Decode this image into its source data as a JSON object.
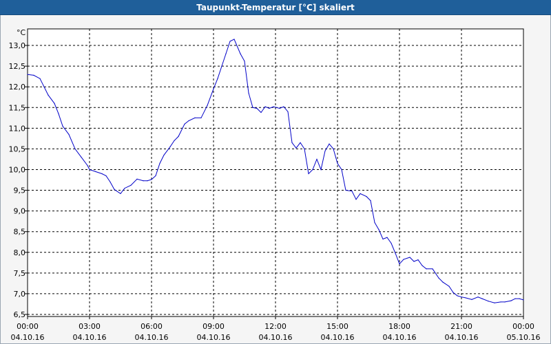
{
  "window": {
    "title": "Taupunkt-Temperatur [°C] skaliert"
  },
  "chart_data": {
    "type": "line",
    "title": "Taupunkt-Temperatur [°C] skaliert",
    "ylabel": "°C",
    "xlabel": "",
    "ylim": [
      6.45,
      13.4
    ],
    "xlim": [
      0,
      24
    ],
    "grid": true,
    "line_color": "#0000c8",
    "y_ticks": [
      {
        "value": 6.5,
        "label": "6,5"
      },
      {
        "value": 7.0,
        "label": "7,0"
      },
      {
        "value": 7.5,
        "label": "7,5"
      },
      {
        "value": 8.0,
        "label": "8,0"
      },
      {
        "value": 8.5,
        "label": "8,5"
      },
      {
        "value": 9.0,
        "label": "9,0"
      },
      {
        "value": 9.5,
        "label": "9,5"
      },
      {
        "value": 10.0,
        "label": "10,0"
      },
      {
        "value": 10.5,
        "label": "10,5"
      },
      {
        "value": 11.0,
        "label": "11,0"
      },
      {
        "value": 11.5,
        "label": "11,5"
      },
      {
        "value": 12.0,
        "label": "12,0"
      },
      {
        "value": 12.5,
        "label": "12,5"
      },
      {
        "value": 13.0,
        "label": "13,0"
      }
    ],
    "x_ticks": [
      {
        "value": 0,
        "time": "00:00",
        "date": "04.10.16"
      },
      {
        "value": 3,
        "time": "03:00",
        "date": "04.10.16"
      },
      {
        "value": 6,
        "time": "06:00",
        "date": "04.10.16"
      },
      {
        "value": 9,
        "time": "09:00",
        "date": "04.10.16"
      },
      {
        "value": 12,
        "time": "12:00",
        "date": "04.10.16"
      },
      {
        "value": 15,
        "time": "15:00",
        "date": "04.10.16"
      },
      {
        "value": 18,
        "time": "18:00",
        "date": "04.10.16"
      },
      {
        "value": 21,
        "time": "21:00",
        "date": "04.10.16"
      },
      {
        "value": 24,
        "time": "00:00",
        "date": "05.10.16"
      }
    ],
    "series": [
      {
        "x": [
          0,
          0.3,
          0.6,
          0.8,
          1.0,
          1.3,
          1.5,
          1.7,
          2.0,
          2.3,
          2.6,
          2.9,
          3.0,
          3.3,
          3.6,
          3.8,
          4.0,
          4.2,
          4.5,
          4.7,
          5.0,
          5.3,
          5.6,
          5.8,
          6.0,
          6.2,
          6.4,
          6.6,
          6.9,
          7.1,
          7.3,
          7.6,
          7.8,
          8.1,
          8.4,
          8.7,
          9.0,
          9.2,
          9.4,
          9.6,
          9.8,
          10.0,
          10.3,
          10.5,
          10.7,
          10.9,
          11.1,
          11.3,
          11.5,
          11.7,
          11.9,
          12.2,
          12.4,
          12.6,
          12.8,
          13.0,
          13.2,
          13.4,
          13.6,
          13.8,
          14.0,
          14.2,
          14.4,
          14.6,
          14.8,
          15.0,
          15.2,
          15.4,
          15.7,
          15.9,
          16.1,
          16.4,
          16.6,
          16.8,
          17.0,
          17.2,
          17.4,
          17.6,
          17.8,
          18.0,
          18.2,
          18.5,
          18.7,
          18.9,
          19.1,
          19.3,
          19.6,
          19.9,
          20.1,
          20.4,
          20.6,
          20.8,
          21.0,
          21.2,
          21.5,
          21.8,
          22.0,
          22.3,
          22.6,
          22.9,
          23.1,
          23.4,
          23.6,
          23.8,
          24.0
        ],
        "values": [
          12.3,
          12.28,
          12.2,
          12.0,
          11.8,
          11.6,
          11.35,
          11.05,
          10.85,
          10.5,
          10.3,
          10.1,
          10.0,
          9.95,
          9.9,
          9.85,
          9.7,
          9.52,
          9.42,
          9.55,
          9.62,
          9.77,
          9.73,
          9.73,
          9.76,
          9.85,
          10.15,
          10.35,
          10.55,
          10.7,
          10.8,
          11.1,
          11.18,
          11.25,
          11.25,
          11.55,
          11.95,
          12.2,
          12.5,
          12.8,
          13.1,
          13.15,
          12.8,
          12.62,
          11.85,
          11.5,
          11.48,
          11.38,
          11.52,
          11.48,
          11.52,
          11.48,
          11.52,
          11.4,
          10.65,
          10.52,
          10.65,
          10.5,
          9.9,
          10.0,
          10.25,
          10.0,
          10.45,
          10.62,
          10.5,
          10.15,
          10.0,
          9.5,
          9.48,
          9.28,
          9.42,
          9.35,
          9.25,
          8.72,
          8.55,
          8.32,
          8.36,
          8.22,
          7.98,
          7.72,
          7.83,
          7.88,
          7.78,
          7.82,
          7.68,
          7.6,
          7.6,
          7.38,
          7.28,
          7.18,
          7.03,
          6.95,
          6.92,
          6.9,
          6.86,
          6.92,
          6.88,
          6.82,
          6.78,
          6.8,
          6.8,
          6.83,
          6.88,
          6.88,
          6.85
        ]
      }
    ]
  }
}
